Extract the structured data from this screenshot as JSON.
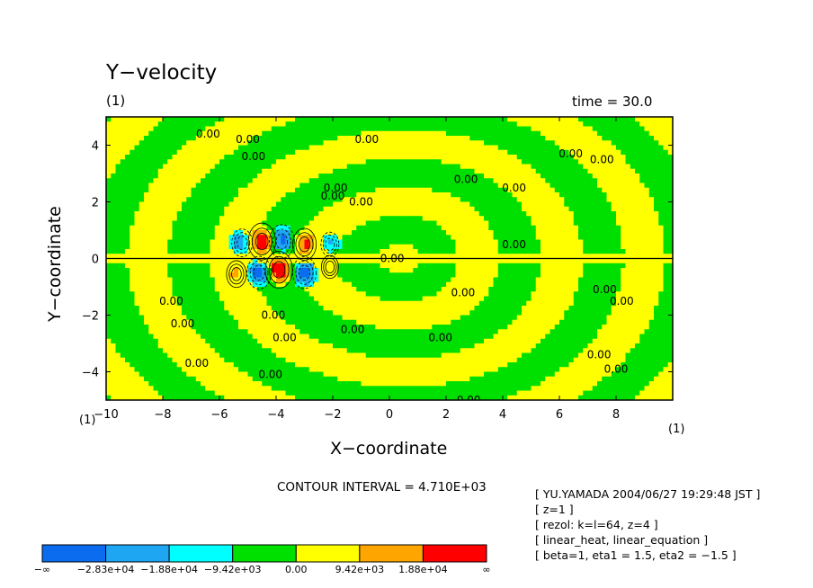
{
  "chart_data": {
    "type": "heatmap",
    "title": "Y−velocity",
    "subtitle_left": "(1)",
    "subtitle_right": "time = 30.0",
    "xlabel": "X−coordinate",
    "ylabel": "Y−coordinate",
    "xlim": [
      -10,
      10
    ],
    "ylim": [
      -5,
      5
    ],
    "x_ticks": [
      "−10",
      "−8",
      "−6",
      "−4",
      "−2",
      "0",
      "2",
      "4",
      "6",
      "8"
    ],
    "x_tick_values": [
      -10,
      -8,
      -6,
      -4,
      -2,
      0,
      2,
      4,
      6,
      8
    ],
    "y_ticks": [
      "4",
      "2",
      "0",
      "−2",
      "−4"
    ],
    "y_tick_values": [
      4,
      2,
      0,
      -2,
      -4
    ],
    "x_unit": "(1)",
    "y_unit": "(1)",
    "contour_interval_text": "CONTOUR INTERVAL = 4.710E+03",
    "contour_label": "0.00",
    "colorbar": {
      "labels": [
        "−∞",
        "−2.83e+04",
        "−1.88e+04",
        "−9.42e+03",
        "0.00",
        "9.42e+03",
        "1.88e+04",
        "∞"
      ],
      "colors": [
        "#0b6cf0",
        "#1ea6f2",
        "#00ffff",
        "#00e000",
        "#ffff00",
        "#ffa500",
        "#ff0000"
      ]
    },
    "vortices": [
      {
        "x": -4.5,
        "y": 0.6,
        "sign": 1,
        "amp": 2.0
      },
      {
        "x": -3.0,
        "y": 0.5,
        "sign": 1,
        "amp": 1.4
      },
      {
        "x": -5.4,
        "y": -0.55,
        "sign": 1,
        "amp": 0.9
      },
      {
        "x": -3.9,
        "y": -0.4,
        "sign": 1,
        "amp": 2.0
      },
      {
        "x": -2.1,
        "y": -0.3,
        "sign": 1,
        "amp": 0.6
      },
      {
        "x": -5.2,
        "y": 0.55,
        "sign": -1,
        "amp": 1.0
      },
      {
        "x": -3.8,
        "y": 0.6,
        "sign": -1,
        "amp": 1.6
      },
      {
        "x": -2.1,
        "y": 0.5,
        "sign": -1,
        "amp": 0.7
      },
      {
        "x": -4.6,
        "y": -0.5,
        "sign": -1,
        "amp": 1.5
      },
      {
        "x": -3.0,
        "y": -0.5,
        "sign": -1,
        "amp": 1.4
      }
    ]
  },
  "info_lines": [
    "[ YU.YAMADA 2004/06/27 19:29:48 JST ]",
    "[ z=1 ]",
    "[ rezol: k=l=64, z=4 ]",
    "[ linear_heat, linear_equation ]",
    "[ beta=1, eta1 = 1.5, eta2 = −1.5 ]"
  ]
}
